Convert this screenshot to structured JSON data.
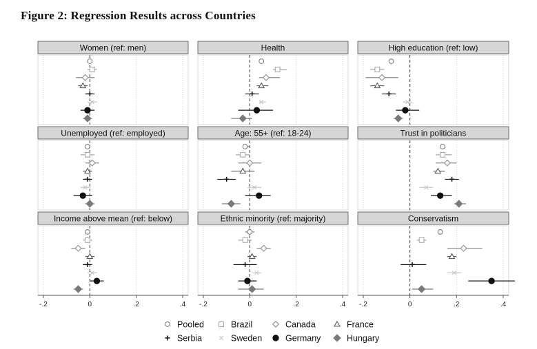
{
  "title": "Figure 2: Regression Results across Countries",
  "x_ticks": [
    -0.2,
    0,
    0.2,
    0.4
  ],
  "x_tick_labels": [
    "-.2",
    "0",
    ".2",
    ".4"
  ],
  "xlim": [
    -0.2,
    0.4
  ],
  "grid": "dotted vertical",
  "legend_position": "bottom",
  "chart_data": {
    "type": "scatter",
    "subtype": "coefficient plot with confidence intervals",
    "series": [
      {
        "name": "Pooled",
        "marker": "circle-open",
        "color": "#7f7f7f"
      },
      {
        "name": "Brazil",
        "marker": "square-open",
        "color": "#a8a8a8"
      },
      {
        "name": "Canada",
        "marker": "diamond-open",
        "color": "#8e8e8e"
      },
      {
        "name": "France",
        "marker": "triangle-open",
        "color": "#5a5a5a"
      },
      {
        "name": "Serbia",
        "marker": "plus",
        "color": "#111111"
      },
      {
        "name": "Sweden",
        "marker": "x",
        "color": "#c9c9c9"
      },
      {
        "name": "Germany",
        "marker": "circle-filled",
        "color": "#111111"
      },
      {
        "name": "Hungary",
        "marker": "diamond-filled",
        "color": "#7a7a7a"
      }
    ],
    "panels": [
      {
        "label": "Women (ref: men)",
        "est": [
          0.0,
          0.01,
          -0.02,
          -0.03,
          0.0,
          0.01,
          -0.01,
          -0.01
        ],
        "lo": [
          -0.01,
          -0.01,
          -0.06,
          -0.05,
          -0.02,
          -0.01,
          -0.04,
          -0.03
        ],
        "hi": [
          0.01,
          0.03,
          0.02,
          -0.01,
          0.02,
          0.03,
          0.02,
          0.01
        ]
      },
      {
        "label": "Health",
        "est": [
          0.05,
          0.12,
          0.07,
          0.05,
          0.01,
          0.05,
          0.03,
          -0.03
        ],
        "lo": [
          0.04,
          0.1,
          0.04,
          0.03,
          -0.02,
          0.04,
          -0.05,
          -0.08
        ],
        "hi": [
          0.06,
          0.16,
          0.13,
          0.08,
          0.04,
          0.07,
          0.1,
          0.01
        ]
      },
      {
        "label": "High education (ref: low)",
        "est": [
          -0.08,
          -0.14,
          -0.12,
          -0.14,
          -0.09,
          -0.01,
          -0.02,
          -0.05
        ],
        "lo": [
          -0.09,
          -0.17,
          -0.19,
          -0.17,
          -0.12,
          -0.03,
          -0.06,
          -0.07
        ],
        "hi": [
          -0.07,
          -0.11,
          -0.05,
          -0.11,
          -0.06,
          0.01,
          0.04,
          -0.03
        ]
      },
      {
        "label": "Unemployed (ref: employed)",
        "est": [
          -0.01,
          -0.01,
          0.01,
          -0.01,
          -0.01,
          -0.02,
          -0.03,
          0.0
        ],
        "lo": [
          -0.02,
          -0.04,
          -0.02,
          -0.03,
          -0.03,
          -0.04,
          -0.07,
          -0.02
        ],
        "hi": [
          0.0,
          0.02,
          0.04,
          0.01,
          0.01,
          0.0,
          0.01,
          0.02
        ]
      },
      {
        "label": "Age: 55+ (ref: 18-24)",
        "est": [
          -0.02,
          -0.03,
          0.0,
          -0.03,
          -0.1,
          0.02,
          0.04,
          -0.08
        ],
        "lo": [
          -0.03,
          -0.06,
          -0.05,
          -0.08,
          -0.14,
          -0.01,
          -0.02,
          -0.12
        ],
        "hi": [
          0.0,
          0.0,
          0.05,
          0.02,
          -0.06,
          0.05,
          0.09,
          -0.04
        ]
      },
      {
        "label": "Trust in politicians",
        "est": [
          0.14,
          0.14,
          0.16,
          0.12,
          0.18,
          0.07,
          0.13,
          0.21
        ],
        "lo": [
          0.13,
          0.11,
          0.11,
          0.1,
          0.15,
          0.04,
          0.09,
          0.19
        ],
        "hi": [
          0.15,
          0.18,
          0.2,
          0.15,
          0.21,
          0.1,
          0.18,
          0.24
        ]
      },
      {
        "label": "Income above mean (ref: below)",
        "est": [
          -0.01,
          -0.01,
          -0.05,
          0.0,
          -0.01,
          0.01,
          0.03,
          -0.05
        ],
        "lo": [
          -0.02,
          -0.03,
          -0.08,
          -0.02,
          -0.03,
          -0.01,
          0.0,
          -0.07
        ],
        "hi": [
          0.0,
          0.01,
          -0.02,
          0.02,
          0.01,
          0.03,
          0.06,
          -0.03
        ]
      },
      {
        "label": "Ethnic minority (ref: majority)",
        "est": [
          0.0,
          -0.02,
          0.06,
          0.01,
          -0.02,
          0.03,
          -0.01,
          0.01
        ],
        "lo": [
          -0.02,
          -0.05,
          0.03,
          -0.01,
          -0.07,
          0.01,
          -0.05,
          -0.05
        ],
        "hi": [
          0.02,
          0.01,
          0.09,
          0.03,
          0.03,
          0.05,
          0.03,
          0.06
        ]
      },
      {
        "label": "Conservatism",
        "est": [
          0.13,
          0.05,
          0.23,
          0.18,
          0.01,
          0.19,
          0.35,
          0.05
        ],
        "lo": [
          0.12,
          0.03,
          0.16,
          0.16,
          -0.04,
          0.16,
          0.25,
          0.01
        ],
        "hi": [
          0.14,
          0.07,
          0.31,
          0.2,
          0.07,
          0.22,
          0.45,
          0.1
        ]
      }
    ]
  }
}
